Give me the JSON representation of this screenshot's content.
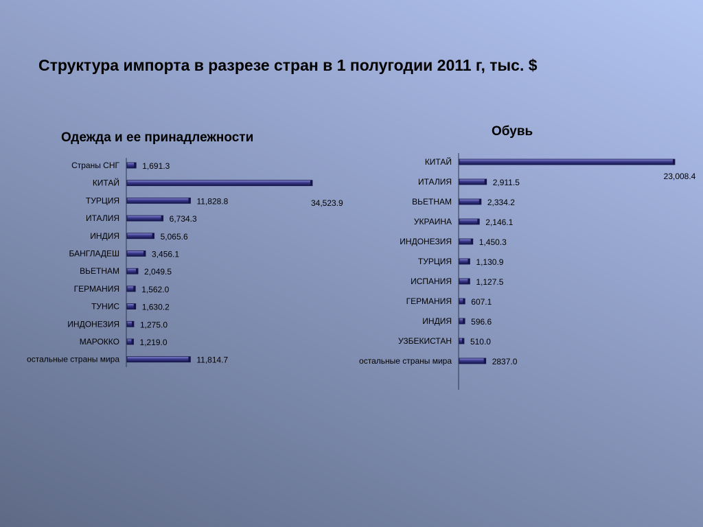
{
  "slide": {
    "title": "Структура импорта в разрезе стран в 1 полугодии 2011 г, тыс. $"
  },
  "colors": {
    "bar_fill": "#3a3a8c",
    "bar_light": "#8b8bd6",
    "bar_dark": "#15154a",
    "axis": "#2e3550"
  },
  "chart_data": [
    {
      "type": "bar",
      "orientation": "horizontal",
      "title": "Одежда и ее принадлежности",
      "categories": [
        "Страны СНГ",
        "КИТАЙ",
        "ТУРЦИЯ",
        "ИТАЛИЯ",
        "ИНДИЯ",
        "БАНГЛАДЕШ",
        "ВЬЕТНАМ",
        "ГЕРМАНИЯ",
        "ТУНИС",
        "ИНДОНЕЗИЯ",
        "МАРОККО",
        "остальные страны мира"
      ],
      "values": [
        1691.3,
        34523.9,
        11828.8,
        6734.3,
        5065.6,
        3456.1,
        2049.5,
        1562.0,
        1630.2,
        1275.0,
        1219.0,
        11814.7
      ],
      "value_labels": [
        "1,691.3",
        "34,523.9",
        "11,828.8",
        "6,734.3",
        "5,065.6",
        "3,456.1",
        "2,049.5",
        "1,562.0",
        "1,630.2",
        "1,275.0",
        "1,219.0",
        "11,814.7"
      ],
      "grid": false,
      "legend": "none"
    },
    {
      "type": "bar",
      "orientation": "horizontal",
      "title": "Обувь",
      "categories": [
        "КИТАЙ",
        "ИТАЛИЯ",
        "ВЬЕТНАМ",
        "УКРАИНА",
        "ИНДОНЕЗИЯ",
        "ТУРЦИЯ",
        "ИСПАНИЯ",
        "ГЕРМАНИЯ",
        "ИНДИЯ",
        "УЗБЕКИСТАН",
        "остальные страны мира"
      ],
      "values": [
        23008.4,
        2911.5,
        2334.2,
        2146.1,
        1450.3,
        1130.9,
        1127.5,
        607.1,
        596.6,
        510.0,
        2837.0
      ],
      "value_labels": [
        "23,008.4",
        "2,911.5",
        "2,334.2",
        "2,146.1",
        "1,450.3",
        "1,130.9",
        "1,127.5",
        "607.1",
        "596.6",
        "510.0",
        "2837.0"
      ],
      "grid": false,
      "legend": "none"
    }
  ]
}
